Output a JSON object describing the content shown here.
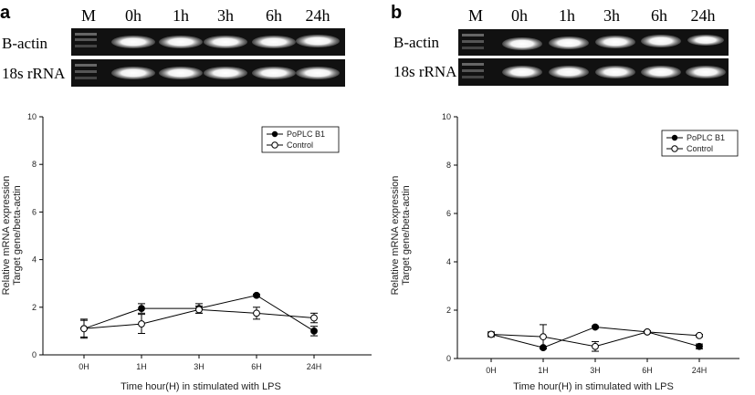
{
  "panels": [
    {
      "letter": "a",
      "gel": {
        "lanes": [
          "M",
          "0h",
          "1h",
          "3h",
          "6h",
          "24h"
        ],
        "rows": [
          "B-actin",
          "18s rRNA"
        ]
      },
      "chart_data": {
        "type": "line",
        "categories": [
          "0H",
          "1H",
          "3H",
          "6H",
          "24H"
        ],
        "series": [
          {
            "name": "PoPLC B1",
            "marker": "filled-circle",
            "values": [
              1.1,
              1.95,
              1.95,
              2.5,
              1.0
            ],
            "errors": [
              0.35,
              0.2,
              0.2,
              0.05,
              0.2
            ]
          },
          {
            "name": "Control",
            "marker": "open-circle",
            "values": [
              1.1,
              1.3,
              1.9,
              1.75,
              1.55
            ],
            "errors": [
              0.4,
              0.4,
              0.15,
              0.25,
              0.2
            ]
          }
        ],
        "xlabel": "Time hour(H) in stimulated with LPS",
        "ylabel": [
          "Relative mRNA expression",
          "Target gene/beta-actin"
        ],
        "ylim": [
          0,
          10
        ],
        "yticks": [
          "0",
          "2",
          "4",
          "6",
          "8",
          "10"
        ],
        "grid": false,
        "legend_position": "top-right"
      }
    },
    {
      "letter": "b",
      "gel": {
        "lanes": [
          "M",
          "0h",
          "1h",
          "3h",
          "6h",
          "24h"
        ],
        "rows": [
          "B-actin",
          "18s rRNA"
        ]
      },
      "chart_data": {
        "type": "line",
        "categories": [
          "0H",
          "1H",
          "3H",
          "6H",
          "24H"
        ],
        "series": [
          {
            "name": "PoPLC B1",
            "marker": "filled-circle",
            "values": [
              1.0,
              0.45,
              1.3,
              1.1,
              0.5
            ],
            "errors": [
              0.05,
              0.05,
              0.05,
              0.05,
              0.1
            ]
          },
          {
            "name": "Control",
            "marker": "open-circle",
            "values": [
              1.0,
              0.9,
              0.5,
              1.1,
              0.95
            ],
            "errors": [
              0.1,
              0.5,
              0.2,
              0.05,
              0.05
            ]
          }
        ],
        "xlabel": "Time hour(H) in stimulated with LPS",
        "ylabel": [
          "Relative mRNA expression",
          "Target gene/beta-actin"
        ],
        "ylim": [
          0,
          10
        ],
        "yticks": [
          "0",
          "2",
          "4",
          "6",
          "8",
          "10"
        ],
        "grid": false,
        "legend_position": "top-right"
      }
    }
  ]
}
